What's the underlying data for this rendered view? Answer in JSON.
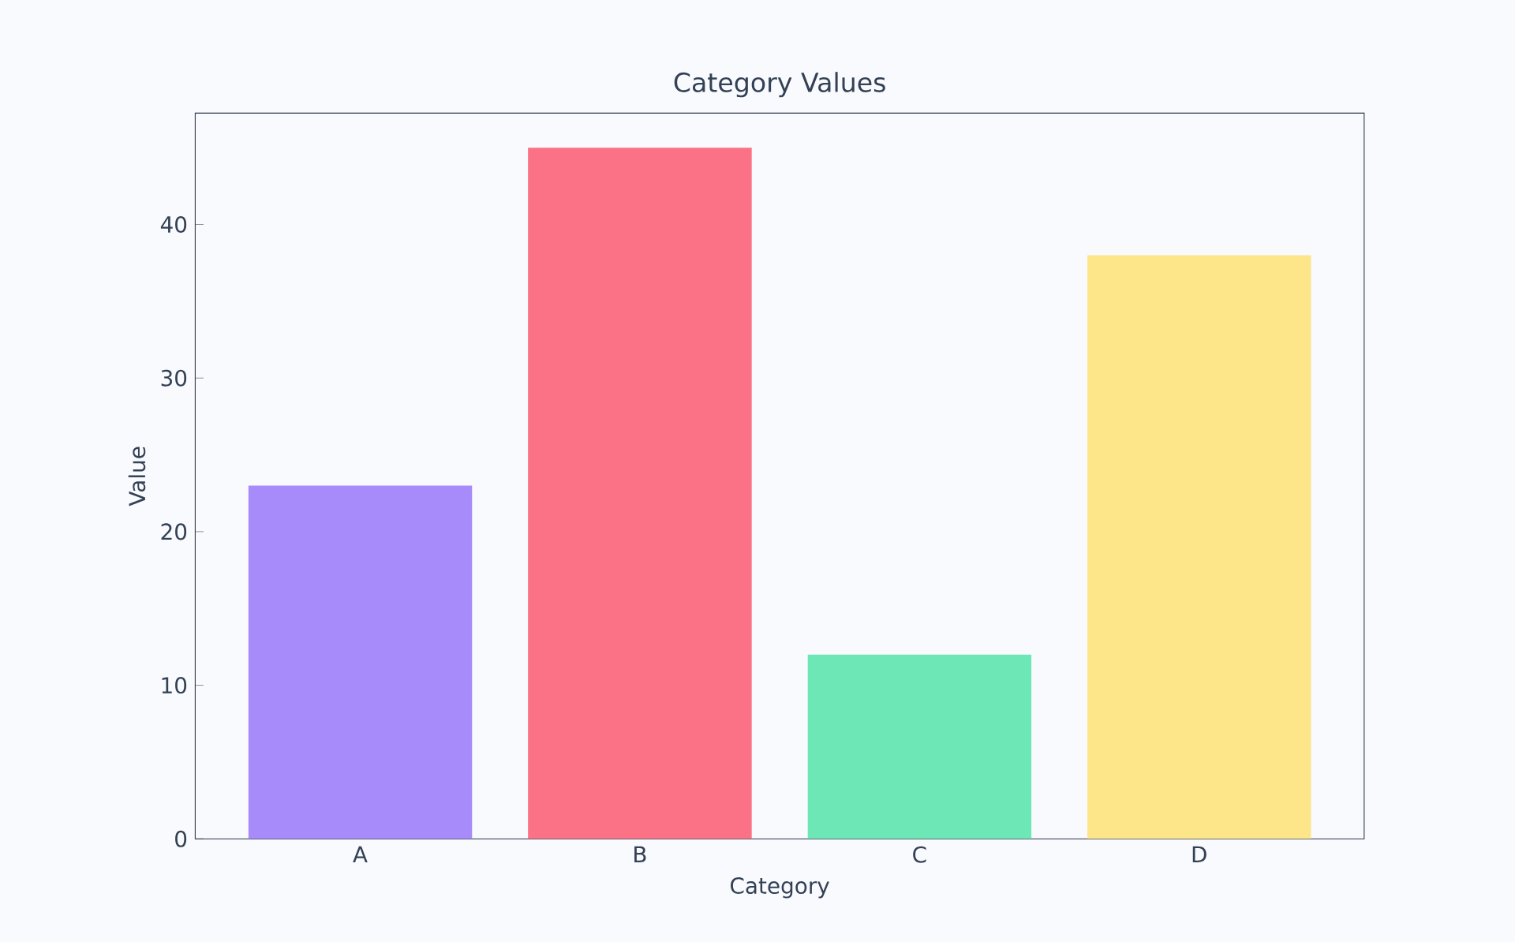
{
  "chart_data": {
    "type": "bar",
    "title": "Category Values",
    "xlabel": "Category",
    "ylabel": "Value",
    "categories": [
      "A",
      "B",
      "C",
      "D"
    ],
    "values": [
      23,
      45,
      12,
      38
    ],
    "colors": [
      "#a78bfa",
      "#fb7185",
      "#6ee7b7",
      "#fde68a"
    ],
    "ylim": [
      0,
      47.25
    ],
    "yticks": [
      0,
      10,
      20,
      30,
      40
    ]
  }
}
